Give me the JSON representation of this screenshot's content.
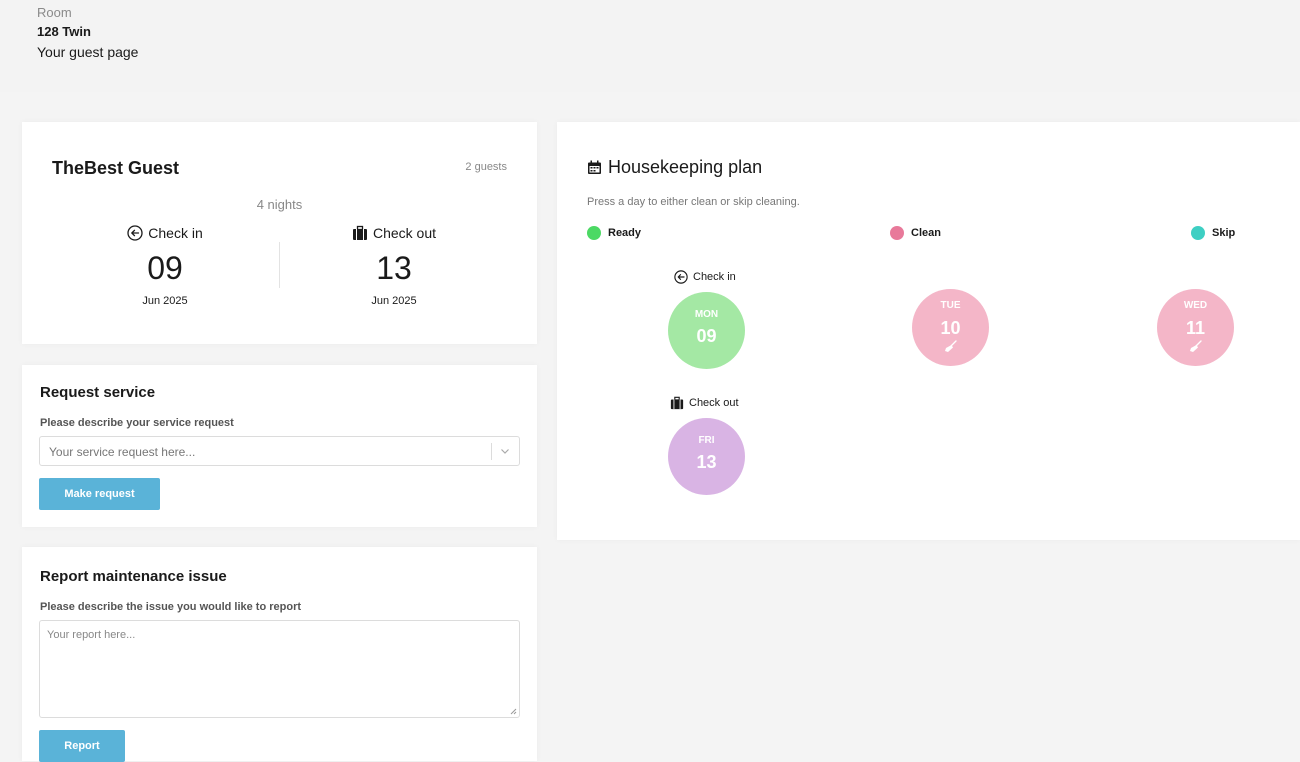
{
  "header": {
    "room_label": "Room",
    "room_name": "128 Twin",
    "subtitle": "Your guest page"
  },
  "guest": {
    "name": "TheBest Guest",
    "guest_count": "2 guests",
    "nights": "4 nights",
    "check_in": {
      "label": "Check in",
      "day": "09",
      "month": "Jun 2025",
      "icon": "arrow-circle-left-icon"
    },
    "check_out": {
      "label": "Check out",
      "day": "13",
      "month": "Jun 2025",
      "icon": "suitcase-icon"
    }
  },
  "request": {
    "title": "Request service",
    "field_label": "Please describe your service request",
    "placeholder": "Your service request here...",
    "button": "Make request"
  },
  "report": {
    "title": "Report maintenance issue",
    "field_label": "Please describe the issue you would like to report",
    "placeholder": "Your report here...",
    "button": "Report"
  },
  "housekeeping": {
    "title": "Housekeeping plan",
    "title_icon": "calendar-icon",
    "subtitle": "Press a day to either clean or skip cleaning.",
    "legend": [
      {
        "label": "Ready",
        "color": "#4cd964"
      },
      {
        "label": "Clean",
        "color": "#e8799a"
      },
      {
        "label": "Skip",
        "color": "#3ecfc3"
      }
    ],
    "days": [
      {
        "weekday": "MON",
        "day": "09",
        "color": "#a4e8a4",
        "tag": "Check in",
        "tag_icon": "arrow-circle-left-icon"
      },
      {
        "weekday": "TUE",
        "day": "10",
        "color": "#f4b6c8",
        "icon": "broom-icon"
      },
      {
        "weekday": "WED",
        "day": "11",
        "color": "#f4b6c8",
        "icon": "broom-icon"
      },
      {
        "weekday": "FRI",
        "day": "13",
        "color": "#d9b4e4",
        "tag": "Check out",
        "tag_icon": "suitcase-icon"
      }
    ]
  },
  "colors": {
    "accent_button": "#5ab3d8",
    "page_background": "#f4f4f4"
  }
}
